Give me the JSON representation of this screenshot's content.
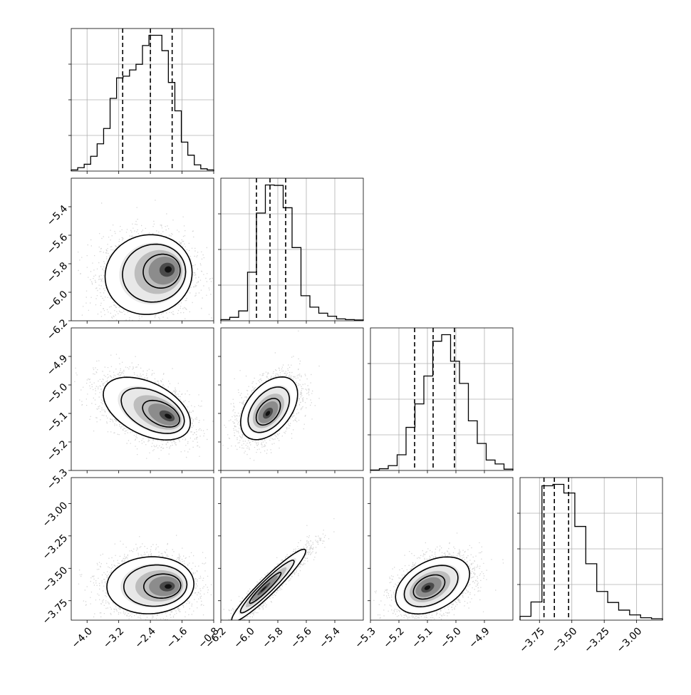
{
  "chart_data": {
    "type": "corner",
    "parameters": [
      {
        "range": [
          -4.4,
          -0.8
        ],
        "ticks": [
          "-4.0",
          "-3.2",
          "-2.4",
          "-1.6",
          "-0.8"
        ],
        "quantiles": [
          -3.1,
          -2.4,
          -1.85
        ],
        "mode": -2.1,
        "hist": [
          0.2,
          0.6,
          1.2,
          2.6,
          4.8,
          7.5,
          12.8,
          16.4,
          16.7,
          17.8,
          18.8,
          22.1,
          23.9,
          23.9,
          21.2,
          15.6,
          10.6,
          5.1,
          2.8,
          1.1,
          0.4,
          0.2
        ]
      },
      {
        "range": [
          -6.2,
          -5.2
        ],
        "ticks": [
          "-6.2",
          "-6.0",
          "-5.8",
          "-5.6",
          "-5.4"
        ],
        "quantiles": [
          -5.95,
          -5.855,
          -5.745
        ],
        "mode": -5.85,
        "hist": [
          0.3,
          0.9,
          2.6,
          12.8,
          28.4,
          35.8,
          35.7,
          29.8,
          19.3,
          6.6,
          3.6,
          2.0,
          1.2,
          0.5,
          0.3,
          0.2
        ]
      },
      {
        "range": [
          -5.3,
          -4.8
        ],
        "ticks": [
          "-5.3",
          "-5.2",
          "-5.1",
          "-5.0",
          "-4.9"
        ],
        "quantiles": [
          -5.145,
          -5.08,
          -5.005
        ],
        "mode": -5.07,
        "hist": [
          0.1,
          0.4,
          1.1,
          3.6,
          9.9,
          15.3,
          21.7,
          29.7,
          31.2,
          25.1,
          20.0,
          11.4,
          6.2,
          2.4,
          1.5,
          0.3
        ]
      },
      {
        "range": [
          -3.9,
          -2.8
        ],
        "ticks": [
          "-3.75",
          "-3.50",
          "-3.25",
          "-3.00"
        ],
        "quantiles": [
          -3.715,
          -3.635,
          -3.525
        ],
        "mode": -3.66,
        "hist": [
          0.8,
          3.8,
          28.1,
          28.4,
          26.6,
          19.6,
          11.8,
          6.0,
          3.7,
          2.1,
          1.1,
          0.5,
          0.3
        ]
      }
    ],
    "pairs": [
      {
        "row": 1,
        "col": 0,
        "center": [
          -2.5,
          -5.88
        ],
        "sd": [
          0.55,
          0.14
        ],
        "rho": 0.05,
        "mode": [
          -1.95,
          -5.84
        ]
      },
      {
        "row": 2,
        "col": 0,
        "center": [
          -2.55,
          -5.08
        ],
        "sd": [
          0.55,
          0.055
        ],
        "rho": -0.45,
        "mode": [
          -1.95,
          -5.11
        ]
      },
      {
        "row": 2,
        "col": 1,
        "center": [
          -5.86,
          -5.08
        ],
        "sd": [
          0.1,
          0.055
        ],
        "rho": 0.45,
        "mode": [
          -5.87,
          -5.1
        ]
      },
      {
        "row": 3,
        "col": 0,
        "center": [
          -2.45,
          -3.63
        ],
        "sd": [
          0.55,
          0.11
        ],
        "rho": 0.05,
        "mode": [
          -1.95,
          -3.64
        ]
      },
      {
        "row": 3,
        "col": 1,
        "center": [
          -5.86,
          -3.63
        ],
        "sd": [
          0.13,
          0.14
        ],
        "rho": 0.95,
        "mode": [
          -5.9,
          -3.66
        ]
      },
      {
        "row": 3,
        "col": 2,
        "center": [
          -5.08,
          -3.63
        ],
        "sd": [
          0.065,
          0.11
        ],
        "rho": 0.4,
        "mode": [
          -5.1,
          -3.65
        ]
      }
    ],
    "contour_levels": [
      0.4,
      0.7,
      0.9
    ],
    "xlabel": "",
    "ylabel": ""
  }
}
